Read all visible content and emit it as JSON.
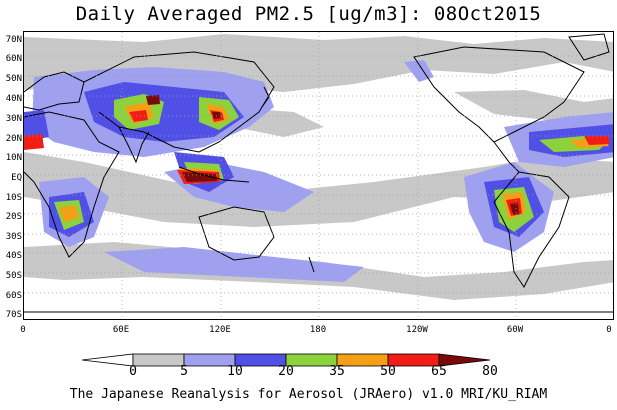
{
  "title": "Daily Averaged PM2.5 [ug/m3]: 08Oct2015",
  "lat_labels": [
    "70N",
    "60N",
    "50N",
    "40N",
    "30N",
    "20N",
    "10N",
    "EQ",
    "10S",
    "20S",
    "30S",
    "40S",
    "50S",
    "60S",
    "70S"
  ],
  "lon_labels": [
    "0",
    "60E",
    "120E",
    "180",
    "120W",
    "60W",
    "0"
  ],
  "colorbar": {
    "levels": [
      "0",
      "5",
      "10",
      "20",
      "35",
      "50",
      "65",
      "80"
    ],
    "colors": [
      "#ffffff",
      "#c8c8c8",
      "#a0a0f0",
      "#5050e6",
      "#8cd23c",
      "#f5a014",
      "#f01e14",
      "#7a0a0a"
    ]
  },
  "footer": "The Japanese Reanalysis for Aerosol (JRAero) v1.0 MRI/KU_RIAM",
  "colors": {
    "land_outline": "#000000",
    "grid": "#a0a0a0"
  }
}
